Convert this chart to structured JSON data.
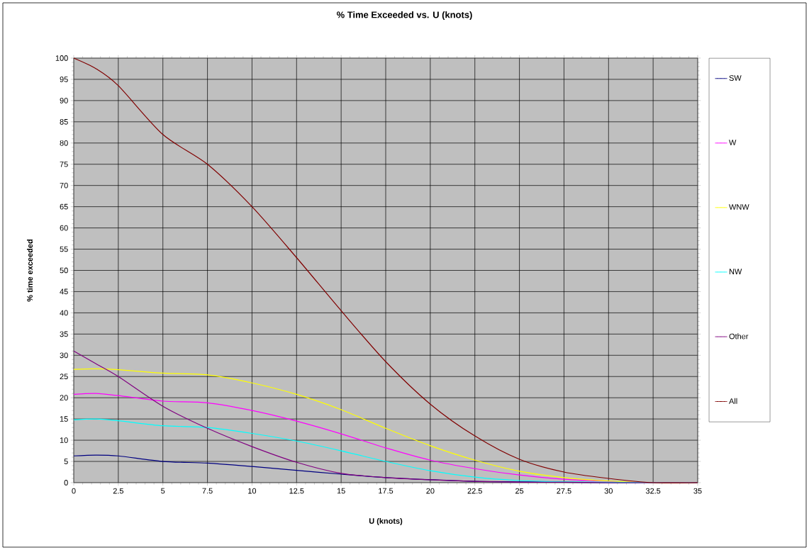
{
  "chart_data": {
    "type": "line",
    "title": "% Time Exceeded vs. U (knots)",
    "xlabel": "U (knots)",
    "ylabel": "% time exceeded",
    "x": [
      0,
      1.25,
      2.5,
      5,
      7.5,
      10,
      12.5,
      15,
      17.5,
      20,
      22.5,
      25,
      27.5,
      30,
      32.5,
      35
    ],
    "series": [
      {
        "name": "SW",
        "color": "#000080",
        "values": [
          6.3,
          6.5,
          6.3,
          5,
          4.6,
          3.8,
          2.9,
          2,
          1.2,
          0.7,
          0.3,
          0.2,
          0.1,
          0,
          0,
          0
        ]
      },
      {
        "name": "W",
        "color": "#ff00ff",
        "values": [
          20.8,
          21,
          20.5,
          19.2,
          18.8,
          17,
          14.5,
          11.5,
          8.2,
          5.3,
          3.3,
          1.8,
          0.8,
          0.3,
          0,
          0
        ]
      },
      {
        "name": "WNW",
        "color": "#ffff00",
        "values": [
          26.7,
          26.8,
          26.6,
          25.8,
          25.4,
          23.5,
          20.8,
          17.2,
          12.8,
          8.7,
          5.3,
          2.7,
          1.2,
          0.4,
          0,
          0
        ]
      },
      {
        "name": "NW",
        "color": "#00ffff",
        "values": [
          14.8,
          15,
          14.6,
          13.4,
          13,
          11.6,
          9.8,
          7.5,
          5,
          2.8,
          1.3,
          0.5,
          0.2,
          0.1,
          0,
          0
        ]
      },
      {
        "name": "Other",
        "color": "#800080",
        "values": [
          31,
          28,
          25,
          18,
          12.8,
          8.5,
          4.8,
          2.2,
          1.2,
          0.7,
          0.3,
          0.1,
          0.1,
          0,
          0,
          0
        ]
      },
      {
        "name": "All",
        "color": "#800000",
        "values": [
          100,
          97.5,
          93.5,
          82,
          75,
          65,
          53,
          40.5,
          28.5,
          18.5,
          11,
          5.5,
          2.5,
          1,
          0,
          0
        ]
      }
    ],
    "xlim": [
      0,
      35
    ],
    "ylim": [
      0,
      100
    ],
    "xticks": [
      0,
      2.5,
      5,
      7.5,
      10,
      12.5,
      15,
      17.5,
      20,
      22.5,
      25,
      27.5,
      30,
      32.5,
      35
    ],
    "yticks": [
      0,
      5,
      10,
      15,
      20,
      25,
      30,
      35,
      40,
      45,
      50,
      55,
      60,
      65,
      70,
      75,
      80,
      85,
      90,
      95,
      100
    ],
    "grid": true,
    "legend": "right",
    "marker": "none",
    "line_style": "solid"
  }
}
